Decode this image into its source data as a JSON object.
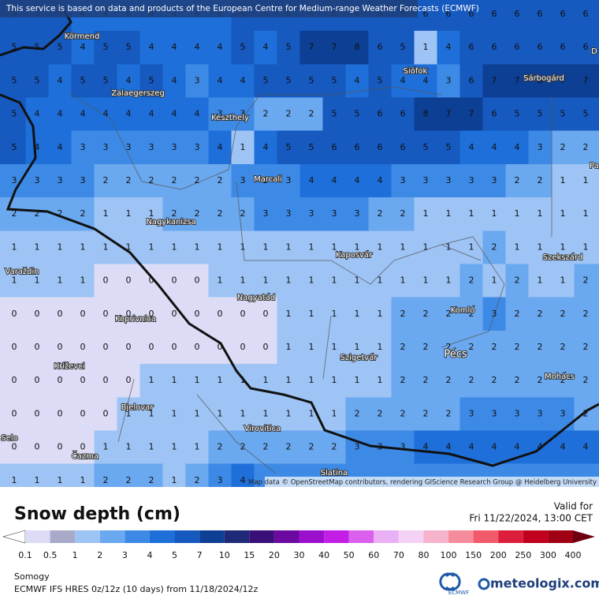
{
  "header": {
    "notice": "This service is based on data and products of the European Centre for Medium-range Weather Forecasts (ECMWF)",
    "attribution": "Map data © OpenStreetMap contributors, rendering GIScience Research Group @ Heidelberg University"
  },
  "map": {
    "grid": [
      [
        5,
        5,
        5,
        4,
        4,
        4,
        4,
        4,
        4,
        4,
        5,
        5,
        5,
        5,
        6,
        6,
        5,
        5,
        6,
        6,
        6,
        6,
        6,
        6,
        6,
        6
      ],
      [
        5,
        5,
        5,
        4,
        5,
        5,
        4,
        4,
        4,
        4,
        5,
        4,
        5,
        7,
        7,
        8,
        6,
        5,
        1,
        4,
        6,
        6,
        6,
        6,
        6,
        6
      ],
      [
        5,
        5,
        4,
        5,
        5,
        4,
        5,
        4,
        3,
        4,
        4,
        5,
        5,
        5,
        5,
        4,
        5,
        4,
        4,
        3,
        6,
        7,
        7,
        8,
        7,
        7
      ],
      [
        5,
        4,
        4,
        4,
        4,
        4,
        4,
        4,
        4,
        3,
        3,
        2,
        2,
        2,
        5,
        5,
        6,
        6,
        8,
        7,
        7,
        6,
        5,
        5,
        5,
        5
      ],
      [
        5,
        4,
        4,
        3,
        3,
        3,
        3,
        3,
        3,
        4,
        1,
        4,
        5,
        5,
        6,
        6,
        6,
        6,
        5,
        5,
        4,
        4,
        4,
        3,
        2,
        2
      ],
      [
        3,
        3,
        3,
        3,
        2,
        2,
        2,
        2,
        2,
        2,
        3,
        3,
        3,
        4,
        4,
        4,
        4,
        3,
        3,
        3,
        3,
        3,
        2,
        2,
        1,
        1
      ],
      [
        2,
        2,
        2,
        2,
        1,
        1,
        1,
        2,
        2,
        2,
        2,
        3,
        3,
        3,
        3,
        3,
        2,
        2,
        1,
        1,
        1,
        1,
        1,
        1,
        1,
        1
      ],
      [
        1,
        1,
        1,
        1,
        1,
        1,
        1,
        1,
        1,
        1,
        1,
        1,
        1,
        1,
        1,
        1,
        1,
        1,
        1,
        1,
        1,
        2,
        1,
        1,
        1,
        1
      ],
      [
        1,
        1,
        1,
        1,
        0,
        0,
        0,
        0,
        0,
        1,
        1,
        1,
        1,
        1,
        1,
        1,
        1,
        1,
        1,
        1,
        2,
        1,
        2,
        1,
        1,
        2
      ],
      [
        0,
        0,
        0,
        0,
        0,
        0,
        0,
        0,
        0,
        0,
        0,
        0,
        1,
        1,
        1,
        1,
        1,
        2,
        2,
        2,
        2,
        3,
        2,
        2,
        2,
        2
      ],
      [
        0,
        0,
        0,
        0,
        0,
        0,
        0,
        0,
        0,
        0,
        0,
        0,
        1,
        1,
        1,
        1,
        1,
        2,
        2,
        2,
        2,
        2,
        2,
        2,
        2,
        2
      ],
      [
        0,
        0,
        0,
        0,
        0,
        0,
        1,
        1,
        1,
        1,
        1,
        1,
        1,
        1,
        1,
        1,
        1,
        2,
        2,
        2,
        2,
        2,
        2,
        2,
        2,
        2
      ],
      [
        0,
        0,
        0,
        0,
        0,
        1,
        1,
        1,
        1,
        1,
        1,
        1,
        1,
        1,
        1,
        2,
        2,
        2,
        2,
        2,
        3,
        3,
        3,
        3,
        3,
        2
      ],
      [
        0,
        0,
        0,
        0,
        1,
        1,
        1,
        1,
        1,
        2,
        2,
        2,
        2,
        2,
        2,
        3,
        3,
        3,
        4,
        4,
        4,
        4,
        4,
        4,
        4,
        4
      ],
      [
        1,
        1,
        1,
        1,
        2,
        2,
        2,
        1,
        2,
        3,
        4,
        null,
        null,
        null,
        null,
        null,
        null,
        null,
        null,
        null,
        null,
        null,
        null,
        null,
        null,
        null
      ]
    ],
    "places": [
      "Körmend",
      "Zalaegerszeg",
      "Keszthely",
      "Siófok",
      "Sárbogárd",
      "Marcali",
      "Nagykanizsa",
      "Kaposvár",
      "Szekszárd",
      "Varaždin",
      "Nagyatád",
      "Koprivnica",
      "Komló",
      "Pécs",
      "Szigetvár",
      "Križevci",
      "Mohács",
      "Bjelovar",
      "Virovitica",
      "Selo",
      "Čazma",
      "Slatina",
      "D",
      "Pa"
    ]
  },
  "legend": {
    "title": "Snow depth (cm)",
    "valid_label": "Valid for",
    "valid_time": "Fri 11/22/2024, 13:00 CET",
    "ticks": [
      0.1,
      0.5,
      1,
      2,
      3,
      4,
      5,
      7,
      10,
      15,
      20,
      30,
      40,
      50,
      60,
      70,
      80,
      100,
      150,
      200,
      250,
      300,
      400
    ],
    "colors": [
      "#ffffff",
      "#dcdcf6",
      "#a9a9c9",
      "#9dc4f5",
      "#6aa8ef",
      "#3d8ae6",
      "#1e6fd9",
      "#1659bf",
      "#0d3f94",
      "#1e2a78",
      "#3a0f7a",
      "#6a0aa0",
      "#9b10cc",
      "#c21ee6",
      "#dc60ee",
      "#eab0f5",
      "#f3d2f5",
      "#f5b4cc",
      "#f58c9c",
      "#f05a6a",
      "#dc1e3c",
      "#c0001e",
      "#a00014",
      "#6e0010"
    ]
  },
  "footer": {
    "region": "Somogy",
    "model": "ECMWF IFS HRES 0z/12z (10 days) from 11/18/2024/12z",
    "ecmwf": "ECMWF",
    "brand": "meteologix.com"
  }
}
